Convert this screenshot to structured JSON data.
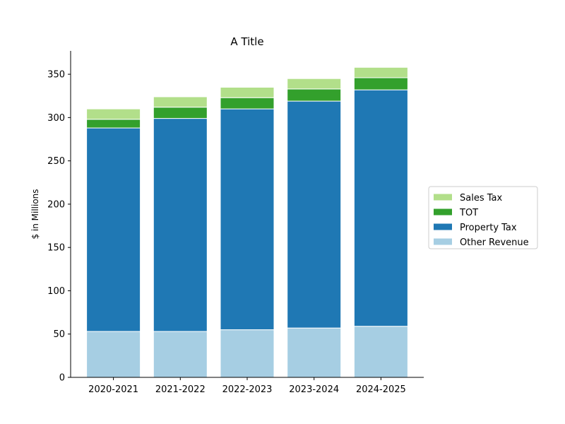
{
  "chart_data": {
    "type": "bar",
    "stacked": true,
    "title": "A Title",
    "xlabel": "",
    "ylabel": "$ in Millions",
    "categories": [
      "2020-2021",
      "2021-2022",
      "2022-2023",
      "2023-2024",
      "2024-2025"
    ],
    "series": [
      {
        "name": "Other Revenue",
        "values": [
          53,
          53,
          55,
          57,
          59
        ],
        "color": "#a6cee3"
      },
      {
        "name": "Property Tax",
        "values": [
          235,
          246,
          255,
          262,
          273
        ],
        "color": "#1f78b4"
      },
      {
        "name": "TOT",
        "values": [
          10,
          13,
          13,
          14,
          14
        ],
        "color": "#33a02c"
      },
      {
        "name": "Sales Tax",
        "values": [
          12,
          12,
          12,
          12,
          12
        ],
        "color": "#b2df8a"
      }
    ],
    "ylim": [
      0,
      377
    ],
    "yticks": [
      0,
      50,
      100,
      150,
      200,
      250,
      300,
      350
    ],
    "grid": false,
    "legend": {
      "placement": "right",
      "order": [
        "Sales Tax",
        "TOT",
        "Property Tax",
        "Other Revenue"
      ]
    }
  }
}
